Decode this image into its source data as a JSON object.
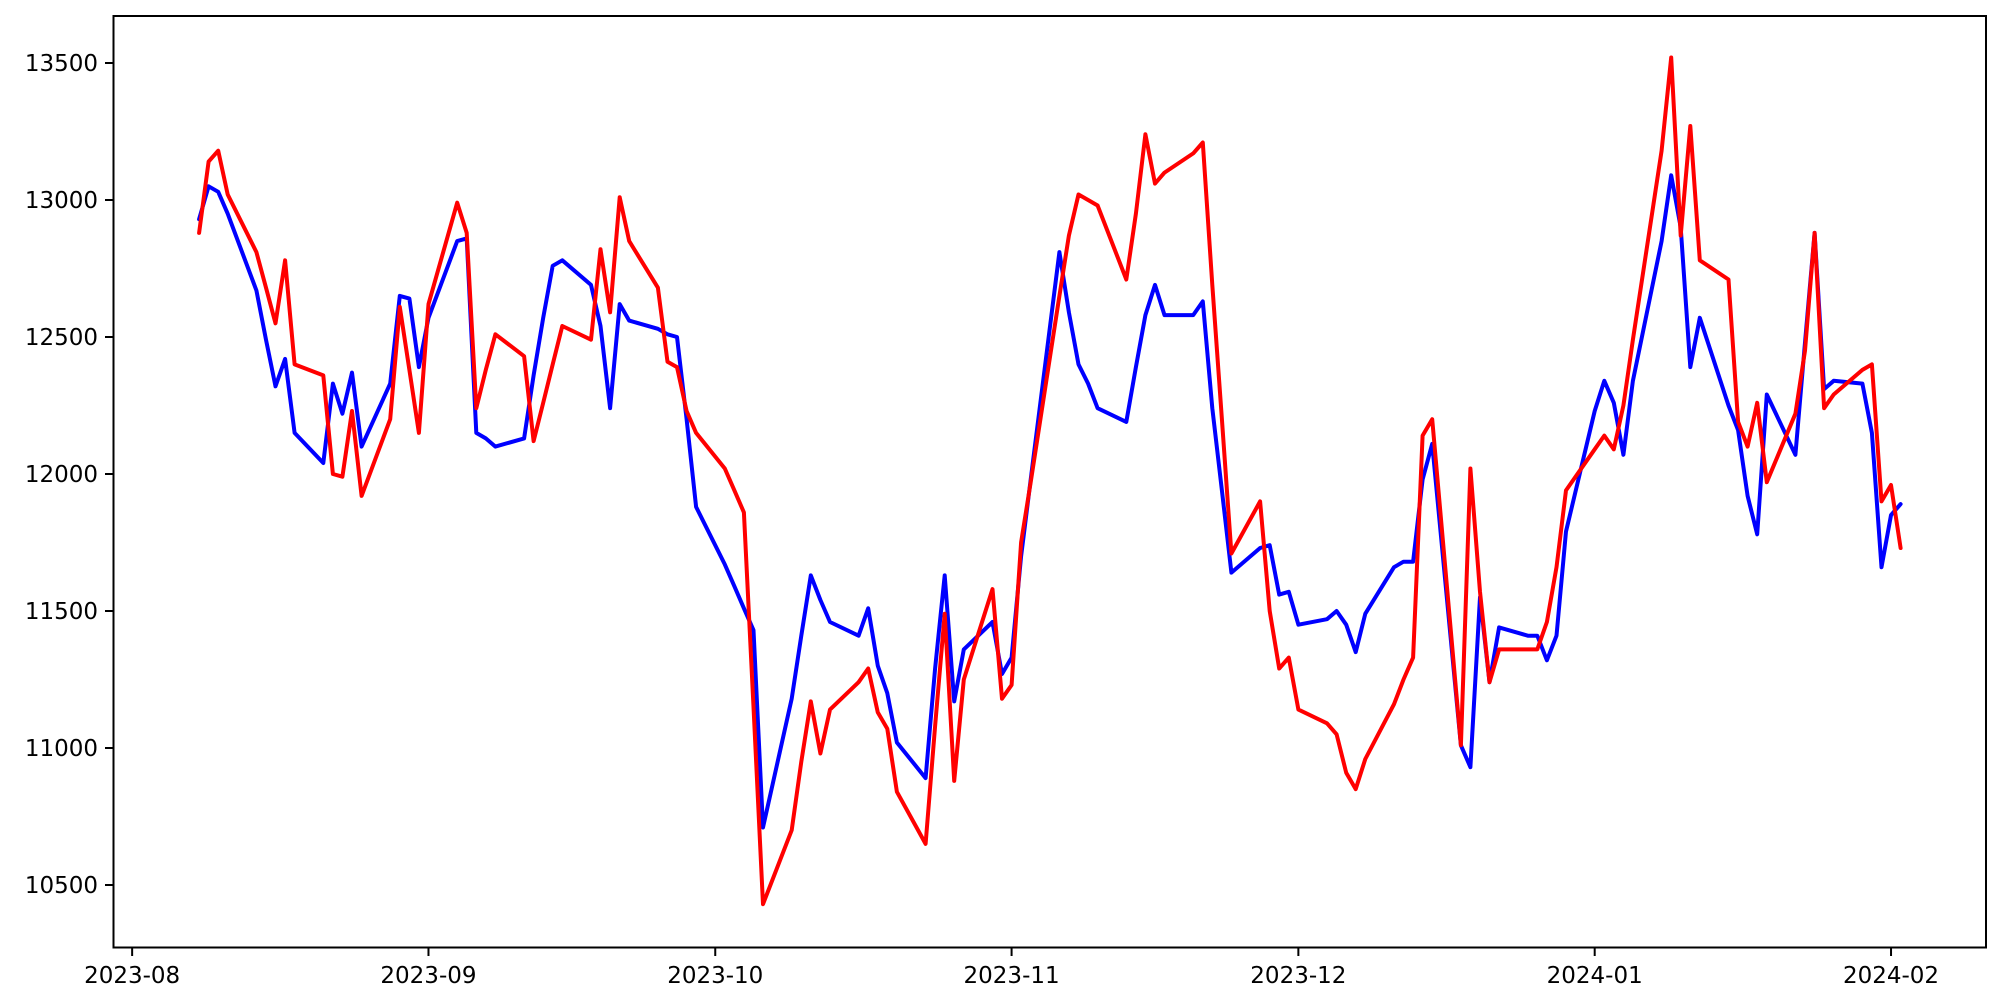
{
  "chart_data": {
    "type": "line",
    "title": "",
    "xlabel": "",
    "ylabel": "",
    "grid": false,
    "legend_position": "none",
    "background_color": "#ffffff",
    "axis_color": "#000000",
    "x_tick_labels": [
      "2023-08",
      "2023-09",
      "2023-10",
      "2023-11",
      "2023-12",
      "2024-01",
      "2024-02"
    ],
    "y_ticks": [
      10500,
      11000,
      11500,
      12000,
      12500,
      13000,
      13500
    ],
    "x_range_days_from_2023_08_01": [
      -1.93,
      193.93
    ],
    "y_range": [
      10271,
      13672
    ],
    "dates": [
      "2023-08-08",
      "2023-08-09",
      "2023-08-10",
      "2023-08-11",
      "2023-08-14",
      "2023-08-15",
      "2023-08-16",
      "2023-08-17",
      "2023-08-18",
      "2023-08-21",
      "2023-08-22",
      "2023-08-23",
      "2023-08-24",
      "2023-08-25",
      "2023-08-28",
      "2023-08-29",
      "2023-08-30",
      "2023-08-31",
      "2023-09-01",
      "2023-09-04",
      "2023-09-05",
      "2023-09-06",
      "2023-09-07",
      "2023-09-08",
      "2023-09-11",
      "2023-09-12",
      "2023-09-13",
      "2023-09-14",
      "2023-09-15",
      "2023-09-18",
      "2023-09-19",
      "2023-09-20",
      "2023-09-21",
      "2023-09-22",
      "2023-09-25",
      "2023-09-26",
      "2023-09-27",
      "2023-09-28",
      "2023-09-29",
      "2023-10-02",
      "2023-10-03",
      "2023-10-04",
      "2023-10-05",
      "2023-10-06",
      "2023-10-09",
      "2023-10-10",
      "2023-10-11",
      "2023-10-12",
      "2023-10-13",
      "2023-10-16",
      "2023-10-17",
      "2023-10-18",
      "2023-10-19",
      "2023-10-20",
      "2023-10-23",
      "2023-10-24",
      "2023-10-25",
      "2023-10-26",
      "2023-10-27",
      "2023-10-30",
      "2023-10-31",
      "2023-11-01",
      "2023-11-02",
      "2023-11-03",
      "2023-11-06",
      "2023-11-07",
      "2023-11-08",
      "2023-11-09",
      "2023-11-10",
      "2023-11-13",
      "2023-11-14",
      "2023-11-15",
      "2023-11-16",
      "2023-11-17",
      "2023-11-20",
      "2023-11-21",
      "2023-11-22",
      "2023-11-23",
      "2023-11-24",
      "2023-11-27",
      "2023-11-28",
      "2023-11-29",
      "2023-11-30",
      "2023-12-01",
      "2023-12-04",
      "2023-12-05",
      "2023-12-06",
      "2023-12-07",
      "2023-12-08",
      "2023-12-11",
      "2023-12-12",
      "2023-12-13",
      "2023-12-14",
      "2023-12-15",
      "2023-12-18",
      "2023-12-19",
      "2023-12-20",
      "2023-12-21",
      "2023-12-22",
      "2023-12-25",
      "2023-12-26",
      "2023-12-27",
      "2023-12-28",
      "2023-12-29",
      "2024-01-01",
      "2024-01-02",
      "2024-01-03",
      "2024-01-04",
      "2024-01-05",
      "2024-01-08",
      "2024-01-09",
      "2024-01-10",
      "2024-01-11",
      "2024-01-12",
      "2024-01-15",
      "2024-01-16",
      "2024-01-17",
      "2024-01-18",
      "2024-01-19",
      "2024-01-22",
      "2024-01-23",
      "2024-01-24",
      "2024-01-25",
      "2024-01-26",
      "2024-01-29",
      "2024-01-30",
      "2024-01-31",
      "2024-02-01",
      "2024-02-02"
    ],
    "series": [
      {
        "name": "blue-series",
        "color": "#0000ff",
        "line_width": 4,
        "values": [
          12930,
          13050,
          13030,
          12950,
          12670,
          12490,
          12320,
          12420,
          12150,
          12040,
          12330,
          12220,
          12370,
          12100,
          12330,
          12650,
          12640,
          12390,
          12570,
          12850,
          12860,
          12150,
          12130,
          12100,
          12130,
          12360,
          12570,
          12760,
          12780,
          12690,
          12540,
          12240,
          12620,
          12560,
          12530,
          12510,
          12500,
          12200,
          11880,
          11670,
          11590,
          11510,
          11430,
          10710,
          11180,
          11410,
          11630,
          11540,
          11460,
          11410,
          11510,
          11300,
          11200,
          11020,
          10890,
          11290,
          11630,
          11170,
          11360,
          11460,
          11270,
          11330,
          11700,
          11980,
          12810,
          12590,
          12400,
          12330,
          12240,
          12190,
          12390,
          12580,
          12690,
          12580,
          12580,
          12630,
          12240,
          11940,
          11640,
          11730,
          11740,
          11560,
          11570,
          11450,
          11470,
          11500,
          11450,
          11350,
          11490,
          11660,
          11680,
          11680,
          11980,
          12110,
          11010,
          10930,
          11550,
          11240,
          11440,
          11410,
          11410,
          11320,
          11410,
          11790,
          12230,
          12340,
          12260,
          12070,
          12340,
          12850,
          13090,
          12900,
          12390,
          12570,
          12250,
          12160,
          11920,
          11780,
          12290,
          12070,
          12480,
          12880,
          12310,
          12340,
          12330,
          12150,
          11660,
          11850,
          11890
        ]
      },
      {
        "name": "red-series",
        "color": "#ff0000",
        "line_width": 4,
        "values": [
          12880,
          13140,
          13180,
          13020,
          12810,
          12680,
          12550,
          12780,
          12400,
          12360,
          12000,
          11990,
          12230,
          11920,
          12200,
          12610,
          12380,
          12150,
          12620,
          12990,
          12880,
          12240,
          12380,
          12510,
          12430,
          12120,
          12260,
          12400,
          12540,
          12490,
          12820,
          12590,
          13010,
          12850,
          12680,
          12410,
          12390,
          12230,
          12150,
          12020,
          11940,
          11860,
          11150,
          10430,
          10700,
          10950,
          11170,
          10980,
          11140,
          11240,
          11290,
          11130,
          11070,
          10840,
          10650,
          11080,
          11490,
          10880,
          11250,
          11580,
          11180,
          11230,
          11750,
          11970,
          12650,
          12870,
          13020,
          13000,
          12980,
          12710,
          12950,
          13240,
          13060,
          13100,
          13170,
          13210,
          12690,
          12200,
          11710,
          11900,
          11500,
          11290,
          11330,
          11140,
          11090,
          11050,
          10910,
          10850,
          10960,
          11160,
          11250,
          11330,
          12140,
          12200,
          11010,
          12020,
          11570,
          11240,
          11360,
          11360,
          11360,
          11460,
          11660,
          11940,
          12090,
          12140,
          12090,
          12250,
          12490,
          13180,
          13520,
          12870,
          13270,
          12780,
          12710,
          12190,
          12100,
          12260,
          11970,
          12220,
          12450,
          12880,
          12240,
          12290,
          12380,
          12400,
          11900,
          11960,
          11730
        ]
      }
    ]
  },
  "layout_geometry_note": ""
}
